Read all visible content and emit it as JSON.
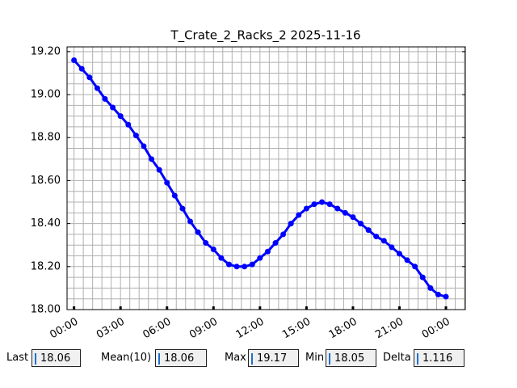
{
  "chart_data": {
    "type": "line",
    "title": "T_Crate_2_Racks_2 2025-11-16",
    "x": [
      0,
      0.5,
      1,
      1.5,
      2,
      2.5,
      3,
      3.5,
      4,
      4.5,
      5,
      5.5,
      6,
      6.5,
      7,
      7.5,
      8,
      8.5,
      9,
      9.5,
      10,
      10.5,
      11,
      11.5,
      12,
      12.5,
      13,
      13.5,
      14,
      14.5,
      15,
      15.5,
      16,
      16.5,
      17,
      17.5,
      18,
      18.5,
      19,
      19.5,
      20,
      20.5,
      21,
      21.5,
      22,
      22.5,
      23,
      23.5,
      24
    ],
    "series": [
      {
        "name": "T_Crate_2_Racks_2",
        "color": "#0000ff",
        "values": [
          19.16,
          19.12,
          19.08,
          19.03,
          18.98,
          18.94,
          18.9,
          18.86,
          18.81,
          18.76,
          18.7,
          18.65,
          18.59,
          18.53,
          18.47,
          18.41,
          18.36,
          18.31,
          18.28,
          18.24,
          18.21,
          18.2,
          18.2,
          18.21,
          18.24,
          18.27,
          18.31,
          18.35,
          18.4,
          18.44,
          18.47,
          18.49,
          18.5,
          18.49,
          18.47,
          18.45,
          18.43,
          18.4,
          18.37,
          18.34,
          18.32,
          18.29,
          18.26,
          18.23,
          18.2,
          18.15,
          18.1,
          18.07,
          18.06
        ]
      }
    ],
    "xlim": [
      -0.45,
      25.25
    ],
    "xticks": [
      {
        "value": 0,
        "label": "00:00"
      },
      {
        "value": 3,
        "label": "03:00"
      },
      {
        "value": 6,
        "label": "06:00"
      },
      {
        "value": 9,
        "label": "09:00"
      },
      {
        "value": 12,
        "label": "12:00"
      },
      {
        "value": 15,
        "label": "15:00"
      },
      {
        "value": 18,
        "label": "18:00"
      },
      {
        "value": 21,
        "label": "21:00"
      },
      {
        "value": 24,
        "label": "00:00"
      }
    ],
    "xminorticks": [
      -0.6,
      0,
      0.6,
      1.2,
      1.8,
      2.4,
      3,
      3.6,
      4.2,
      4.8,
      5.4,
      6,
      6.6,
      7.2,
      7.8,
      8.4,
      9,
      9.6,
      10.2,
      10.8,
      11.4,
      12,
      12.6,
      13.2,
      13.8,
      14.4,
      15,
      15.6,
      16.2,
      16.8,
      17.4,
      18,
      18.6,
      19.2,
      19.8,
      20.4,
      21,
      21.6,
      22.2,
      22.8,
      23.4,
      24,
      24.6,
      25.2
    ],
    "ylim": [
      18.0,
      19.222
    ],
    "yticks": [
      {
        "value": 18.0,
        "label": "18.00"
      },
      {
        "value": 18.2,
        "label": "18.20"
      },
      {
        "value": 18.4,
        "label": "18.40"
      },
      {
        "value": 18.6,
        "label": "18.60"
      },
      {
        "value": 18.8,
        "label": "18.80"
      },
      {
        "value": 19.0,
        "label": "19.00"
      },
      {
        "value": 19.2,
        "label": "19.20"
      }
    ],
    "yminorticks": [
      18.05,
      18.1,
      18.15,
      18.2,
      18.25,
      18.3,
      18.35,
      18.4,
      18.45,
      18.5,
      18.55,
      18.6,
      18.65,
      18.7,
      18.75,
      18.8,
      18.85,
      18.9,
      18.95,
      19.0,
      19.05,
      19.1,
      19.15,
      19.2
    ],
    "grid": true,
    "markers": true
  },
  "status": [
    {
      "label": "Last",
      "value": "18.06"
    },
    {
      "label": "Mean(10)",
      "value": "18.06"
    },
    {
      "label": "Max",
      "value": "19.17"
    },
    {
      "label": "Min",
      "value": "18.05"
    },
    {
      "label": "Delta",
      "value": "1.116"
    }
  ]
}
